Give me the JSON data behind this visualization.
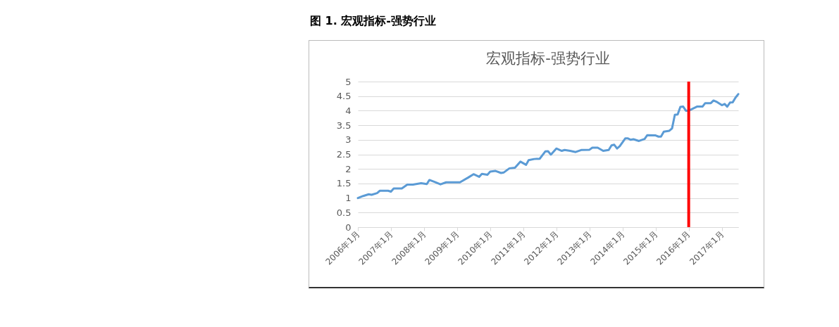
{
  "chart_data": {
    "type": "line",
    "title": "图 1. 宏观指标-强势行业",
    "subtitle": "宏观指标-强势行业",
    "x": [
      "2006-01",
      "2006-03",
      "2006-05",
      "2006-06",
      "2006-08",
      "2006-09",
      "2006-12",
      "2007-01",
      "2007-02",
      "2007-05",
      "2007-07",
      "2007-09",
      "2007-12",
      "2008-02",
      "2008-03",
      "2008-05",
      "2008-07",
      "2008-09",
      "2009-02",
      "2009-05",
      "2009-07",
      "2009-09",
      "2009-10",
      "2009-12",
      "2010-01",
      "2010-03",
      "2010-05",
      "2010-06",
      "2010-08",
      "2010-10",
      "2010-12",
      "2011-02",
      "2011-03",
      "2011-05",
      "2011-07",
      "2011-09",
      "2011-10",
      "2011-11",
      "2012-01",
      "2012-03",
      "2012-04",
      "2012-06",
      "2012-08",
      "2012-10",
      "2013-01",
      "2013-02",
      "2013-04",
      "2013-06",
      "2013-08",
      "2013-09",
      "2013-10",
      "2013-11",
      "2013-12",
      "2014-02",
      "2014-03",
      "2014-04",
      "2014-05",
      "2014-07",
      "2014-09",
      "2014-10",
      "2015-01",
      "2015-02",
      "2015-03",
      "2015-04",
      "2015-06",
      "2015-07",
      "2015-08",
      "2015-09",
      "2015-10",
      "2015-11",
      "2015-12",
      "2016-01",
      "2016-04",
      "2016-06",
      "2016-07",
      "2016-09",
      "2016-10",
      "2016-11",
      "2017-01",
      "2017-02",
      "2017-03",
      "2017-04",
      "2017-05",
      "2017-06",
      "2017-07"
    ],
    "series": [
      {
        "color": "#5b9bd5",
        "values": [
          1.0,
          1.07,
          1.13,
          1.11,
          1.17,
          1.25,
          1.25,
          1.22,
          1.33,
          1.33,
          1.46,
          1.46,
          1.51,
          1.48,
          1.62,
          1.55,
          1.47,
          1.54,
          1.54,
          1.7,
          1.82,
          1.73,
          1.83,
          1.8,
          1.91,
          1.93,
          1.86,
          1.88,
          2.02,
          2.04,
          2.25,
          2.14,
          2.3,
          2.34,
          2.35,
          2.6,
          2.61,
          2.49,
          2.7,
          2.62,
          2.65,
          2.62,
          2.58,
          2.65,
          2.66,
          2.73,
          2.73,
          2.62,
          2.65,
          2.81,
          2.83,
          2.7,
          2.78,
          3.05,
          3.05,
          3.0,
          3.02,
          2.96,
          3.03,
          3.16,
          3.15,
          3.11,
          3.11,
          3.28,
          3.31,
          3.39,
          3.86,
          3.87,
          4.13,
          4.14,
          4.0,
          4.0,
          4.14,
          4.14,
          4.26,
          4.26,
          4.35,
          4.31,
          4.19,
          4.23,
          4.14,
          4.28,
          4.29,
          4.45,
          4.57
        ]
      }
    ],
    "xlim": [
      "2006-01",
      "2017-07"
    ],
    "xticks": [
      {
        "value": "2006-01",
        "label": "2006年1月"
      },
      {
        "value": "2007-01",
        "label": "2007年1月"
      },
      {
        "value": "2008-01",
        "label": "2008年1月"
      },
      {
        "value": "2009-01",
        "label": "2009年1月"
      },
      {
        "value": "2010-01",
        "label": "2010年1月"
      },
      {
        "value": "2011-01",
        "label": "2011年1月"
      },
      {
        "value": "2012-01",
        "label": "2012年1月"
      },
      {
        "value": "2013-01",
        "label": "2013年1月"
      },
      {
        "value": "2014-01",
        "label": "2014年1月"
      },
      {
        "value": "2015-01",
        "label": "2015年1月"
      },
      {
        "value": "2016-01",
        "label": "2016年1月"
      },
      {
        "value": "2017-01",
        "label": "2017年1月"
      }
    ],
    "ylim": [
      0,
      5
    ],
    "yticks": [
      0,
      0.5,
      1,
      1.5,
      2,
      2.5,
      3,
      3.5,
      4,
      4.5,
      5
    ],
    "grid": "y",
    "ref_lines": [
      {
        "axis": "x",
        "value": "2016-01",
        "color": "#ff0000"
      }
    ]
  }
}
